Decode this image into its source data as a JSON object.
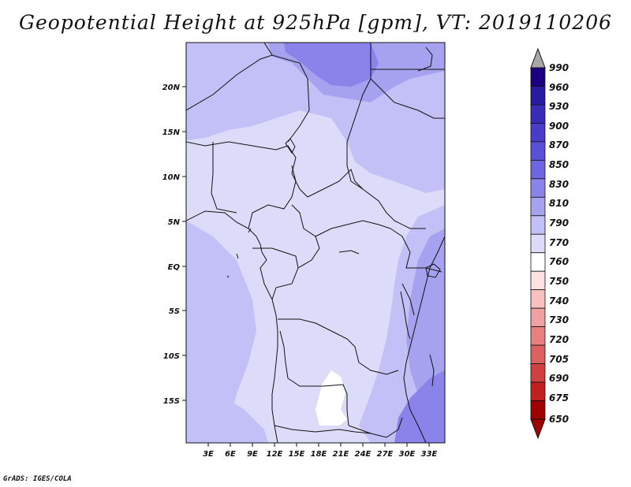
{
  "title": "Geopotential Height at 925hPa [gpm], VT: 2019110206",
  "credit": "GrADS: IGES/COLA",
  "lat_labels": [
    "20N",
    "15N",
    "10N",
    "5N",
    "EQ",
    "5S",
    "10S",
    "15S"
  ],
  "lon_labels": [
    "3E",
    "6E",
    "9E",
    "12E",
    "15E",
    "18E",
    "21E",
    "24E",
    "27E",
    "30E",
    "33E"
  ],
  "colorbar": {
    "labels": [
      "990",
      "960",
      "930",
      "900",
      "870",
      "850",
      "830",
      "810",
      "790",
      "770",
      "760",
      "750",
      "740",
      "730",
      "720",
      "705",
      "690",
      "675",
      "650"
    ],
    "colors": [
      "#1a0080",
      "#2a1aa0",
      "#3a2ab8",
      "#4a3cc8",
      "#5a50d6",
      "#6e66e0",
      "#8a84ea",
      "#a6a2f0",
      "#c2c0f6",
      "#dcdcfa",
      "#ffffff",
      "#fde0e0",
      "#f8c0c0",
      "#f0a0a0",
      "#e88080",
      "#dc6060",
      "#d04040",
      "#c02020",
      "#a00000"
    ]
  },
  "map_colors": {
    "lightest": "#dcdcfa",
    "light": "#c2c0f6",
    "mid": "#a6a2f0",
    "dark": "#8a84ea",
    "low": "#ffffff"
  },
  "chart_data": {
    "type": "heatmap",
    "title": "Geopotential Height at 925hPa [gpm], VT: 2019110206",
    "xlabel": "",
    "ylabel": "",
    "x_range": [
      "0E",
      "35E"
    ],
    "y_range": [
      "20S",
      "24N"
    ],
    "color_levels": [
      650,
      675,
      690,
      705,
      720,
      730,
      740,
      750,
      760,
      770,
      790,
      810,
      830,
      850,
      870,
      900,
      930,
      960,
      990
    ]
  }
}
